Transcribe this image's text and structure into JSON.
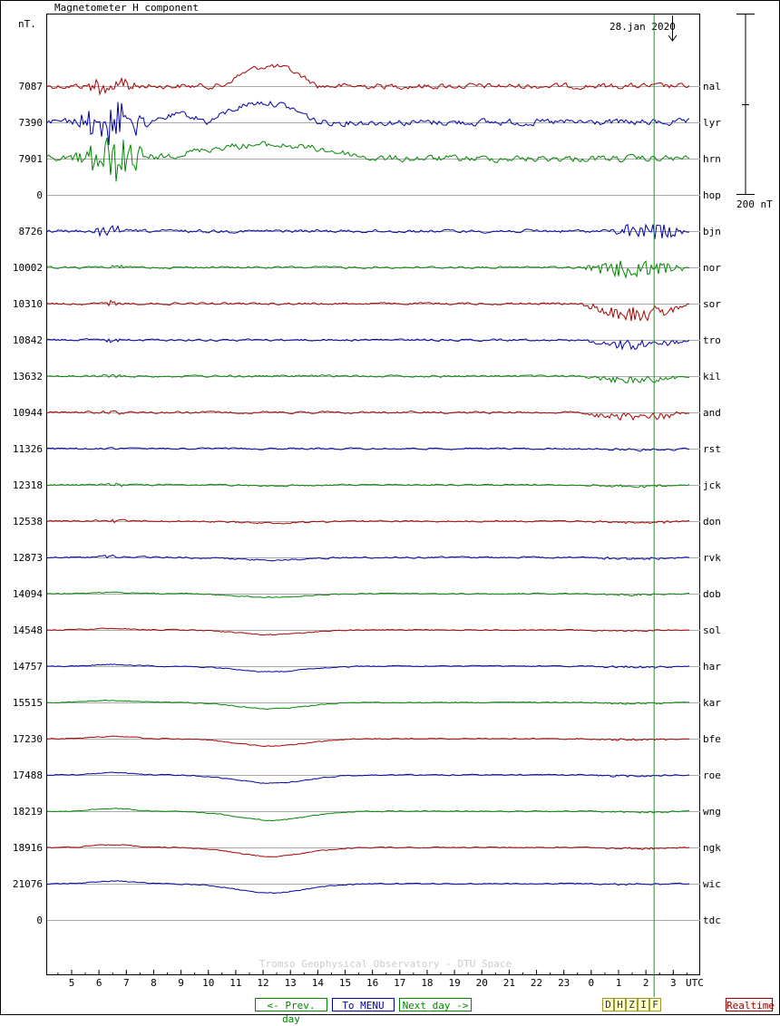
{
  "title": "Magnetometer H component",
  "unit_label": "nT.",
  "date_label": "28.jan 2020",
  "scale_label": "200 nT",
  "credit": "Tromso Geophysical Observatory - DTU Space",
  "x_axis_unit": "UTC",
  "x_tick_labels": [
    "5",
    "6",
    "7",
    "8",
    "9",
    "10",
    "11",
    "12",
    "13",
    "14",
    "15",
    "16",
    "17",
    "18",
    "19",
    "20",
    "21",
    "22",
    "23",
    "0",
    "1",
    "2",
    "3"
  ],
  "nav": {
    "prev_label": "<- Prev. day",
    "menu_label": "To MENU",
    "next_label": "Next day ->",
    "components": [
      "D",
      "H",
      "Z",
      "I",
      "F"
    ],
    "realtime_label": "Realtime"
  },
  "colors": {
    "red": "#aa0000",
    "blue": "#0000aa",
    "green": "#008800",
    "gridline": "#aaaaaa",
    "now_marker": "#00aa00",
    "credit": "#cccccc"
  },
  "chart_data": {
    "type": "line",
    "title": "Magnetometer H component",
    "xlabel": "UTC",
    "ylabel": "nT.",
    "x_range_hours": [
      4,
      27.7
    ],
    "current_time_hours": 26.3,
    "scale_bar_nT": 200,
    "series": [
      {
        "name": "nal",
        "baseline": "7087",
        "color": "red",
        "features": {
          "dist": [
            [
              5.5,
              7.5,
              30
            ]
          ],
          "storm": [],
          "big": [
            [
              10.5,
              14,
              -22
            ]
          ],
          "noise": 5
        }
      },
      {
        "name": "lyr",
        "baseline": "7390",
        "color": "blue",
        "features": {
          "dist": [
            [
              5,
              8,
              50
            ]
          ],
          "storm": [],
          "big": [
            [
              10,
              14,
              -22
            ],
            [
              8,
              10,
              -8
            ]
          ],
          "noise": 6
        }
      },
      {
        "name": "hrn",
        "baseline": "7901",
        "color": "green",
        "features": {
          "dist": [
            [
              5,
              8,
              55
            ]
          ],
          "storm": [],
          "big": [
            [
              8,
              16,
              -15
            ]
          ],
          "noise": 6
        }
      },
      {
        "name": "hop",
        "baseline": "0",
        "color": "none",
        "features": {
          "dist": [],
          "storm": [],
          "big": [],
          "noise": 0
        }
      },
      {
        "name": "bjn",
        "baseline": "8726",
        "color": "blue",
        "features": {
          "dist": [
            [
              5.5,
              7,
              12
            ]
          ],
          "storm": [
            [
              24.5,
              27.6,
              30,
              -10
            ]
          ],
          "big": [],
          "noise": 3
        }
      },
      {
        "name": "nor",
        "baseline": "10002",
        "color": "green",
        "features": {
          "dist": [
            [
              6,
              7,
              6
            ]
          ],
          "storm": [
            [
              23.6,
              27.6,
              35,
              -10
            ]
          ],
          "big": [],
          "noise": 2
        }
      },
      {
        "name": "sor",
        "baseline": "10310",
        "color": "red",
        "features": {
          "dist": [
            [
              6,
              7,
              6
            ]
          ],
          "storm": [
            [
              23.6,
              27.6,
              30,
              0
            ]
          ],
          "big": [],
          "noise": 2
        }
      },
      {
        "name": "tro",
        "baseline": "10842",
        "color": "blue",
        "features": {
          "dist": [
            [
              6,
              7,
              6
            ]
          ],
          "storm": [
            [
              23.6,
              27.6,
              18,
              0
            ]
          ],
          "big": [],
          "noise": 2
        }
      },
      {
        "name": "kil",
        "baseline": "13632",
        "color": "green",
        "features": {
          "dist": [
            [
              6,
              7,
              6
            ]
          ],
          "storm": [
            [
              23.6,
              27.6,
              12,
              0
            ]
          ],
          "big": [],
          "noise": 2
        }
      },
      {
        "name": "and",
        "baseline": "10944",
        "color": "red",
        "features": {
          "dist": [
            [
              6,
              7,
              6
            ]
          ],
          "storm": [
            [
              23.6,
              27.6,
              15,
              0
            ]
          ],
          "big": [],
          "noise": 2
        }
      },
      {
        "name": "rst",
        "baseline": "11326",
        "color": "blue",
        "features": {
          "dist": [
            [
              6,
              7,
              4
            ]
          ],
          "storm": [
            [
              23.6,
              27.6,
              4,
              0
            ]
          ],
          "big": [],
          "noise": 1.5
        }
      },
      {
        "name": "jck",
        "baseline": "12318",
        "color": "green",
        "features": {
          "dist": [
            [
              6,
              7,
              4
            ]
          ],
          "storm": [
            [
              23.6,
              27.6,
              4,
              0
            ]
          ],
          "big": [],
          "noise": 1.5
        }
      },
      {
        "name": "don",
        "baseline": "12538",
        "color": "red",
        "features": {
          "dist": [
            [
              6,
              7,
              4
            ]
          ],
          "storm": [
            [
              23.6,
              27.6,
              4,
              0
            ]
          ],
          "big": [],
          "noise": 1.5
        }
      },
      {
        "name": "rvk",
        "baseline": "12873",
        "color": "blue",
        "features": {
          "dist": [
            [
              6,
              7,
              4
            ]
          ],
          "storm": [
            [
              23.6,
              27.6,
              4,
              0
            ]
          ],
          "big": [],
          "noise": 1.5
        }
      },
      {
        "name": "dob",
        "baseline": "14094",
        "color": "green",
        "features": {
          "dist": [],
          "storm": [
            [
              23.6,
              27.6,
              3,
              0
            ]
          ],
          "big": [],
          "noise": 1
        }
      },
      {
        "name": "sol",
        "baseline": "14548",
        "color": "red",
        "features": {
          "dist": [],
          "storm": [
            [
              23.6,
              27.6,
              3,
              0
            ]
          ],
          "big": [],
          "noise": 1
        }
      },
      {
        "name": "har",
        "baseline": "14757",
        "color": "blue",
        "features": {
          "dist": [],
          "storm": [
            [
              23.6,
              27.6,
              3,
              0
            ]
          ],
          "big": [],
          "noise": 1
        }
      },
      {
        "name": "kar",
        "baseline": "15515",
        "color": "green",
        "features": {
          "dist": [],
          "storm": [
            [
              23.6,
              27.6,
              3,
              0
            ]
          ],
          "big": [],
          "noise": 1
        }
      },
      {
        "name": "bfe",
        "baseline": "17230",
        "color": "red",
        "features": {
          "dist": [],
          "storm": [
            [
              23.6,
              27.6,
              3,
              0
            ]
          ],
          "big": [],
          "noise": 1
        }
      },
      {
        "name": "roe",
        "baseline": "17488",
        "color": "blue",
        "features": {
          "dist": [],
          "storm": [
            [
              23.6,
              27.6,
              3,
              0
            ]
          ],
          "big": [],
          "noise": 1
        }
      },
      {
        "name": "wng",
        "baseline": "18219",
        "color": "green",
        "features": {
          "dist": [],
          "storm": [
            [
              23.6,
              27.6,
              3,
              0
            ]
          ],
          "big": [],
          "noise": 1
        }
      },
      {
        "name": "ngk",
        "baseline": "18916",
        "color": "red",
        "features": {
          "dist": [],
          "storm": [
            [
              23.6,
              27.6,
              3,
              0
            ]
          ],
          "big": [],
          "noise": 1
        }
      },
      {
        "name": "wic",
        "baseline": "21076",
        "color": "blue",
        "features": {
          "dist": [],
          "storm": [
            [
              23.6,
              27.6,
              2,
              0
            ]
          ],
          "big": [],
          "noise": 1
        }
      },
      {
        "name": "tdc",
        "baseline": "0",
        "color": "none",
        "features": {
          "dist": [],
          "storm": [],
          "big": [],
          "noise": 0
        }
      }
    ]
  }
}
